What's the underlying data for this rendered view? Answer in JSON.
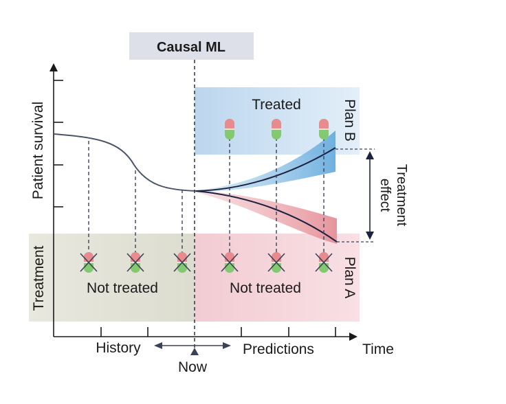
{
  "title": "Causal ML",
  "axes": {
    "y_label": "Patient survival",
    "x_label": "Time",
    "treatment_label": "Treatment"
  },
  "timeline": {
    "history": "History",
    "now": "Now",
    "predictions": "Predictions"
  },
  "regions": {
    "treated": "Treated",
    "not_treated_history": "Not treated",
    "not_treated_future": "Not treated",
    "plan_b": "Plan B",
    "plan_a": "Plan A"
  },
  "treatment_effect": {
    "line1": "Treatment",
    "line2": "effect"
  },
  "colors": {
    "title_box": "#dde0e8",
    "history_bg": "#e6e6dc",
    "plan_a_bg": "#f4d6da",
    "plan_b_bg": "#c9dcef",
    "survival_curve": "#4a5468",
    "plan_a_band": "#e8a0a6",
    "plan_b_band": "#8ec0e4",
    "dark_curve": "#1c2340",
    "pill_red": "#e98a8e",
    "pill_green": "#82c96f"
  },
  "icons": {
    "pill": "pill-icon",
    "crossed_pill": "crossed-pill-icon",
    "arrow": "double-arrow-icon"
  }
}
